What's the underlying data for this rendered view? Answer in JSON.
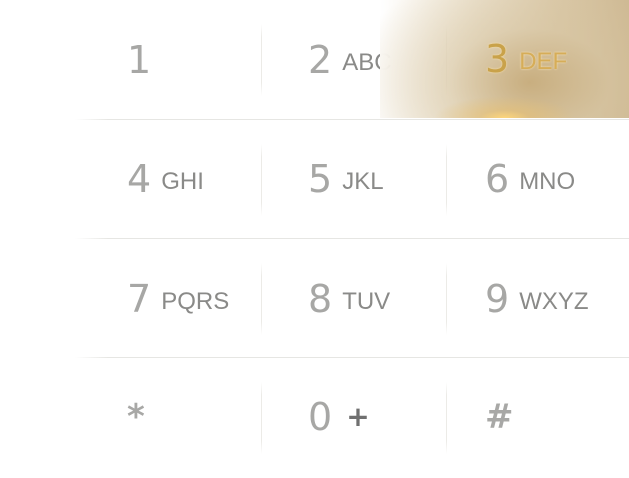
{
  "keypad": {
    "accent_color": "#c9a24a",
    "pressed_key": "3",
    "rows": [
      [
        {
          "digit": "1",
          "letters": ""
        },
        {
          "digit": "2",
          "letters": "ABC"
        },
        {
          "digit": "3",
          "letters": "DEF"
        }
      ],
      [
        {
          "digit": "4",
          "letters": "GHI"
        },
        {
          "digit": "5",
          "letters": "JKL"
        },
        {
          "digit": "6",
          "letters": "MNO"
        }
      ],
      [
        {
          "digit": "7",
          "letters": "PQRS"
        },
        {
          "digit": "8",
          "letters": "TUV"
        },
        {
          "digit": "9",
          "letters": "WXYZ"
        }
      ],
      [
        {
          "digit": "*",
          "letters": ""
        },
        {
          "digit": "0",
          "letters": "+"
        },
        {
          "digit": "#",
          "letters": ""
        }
      ]
    ]
  }
}
